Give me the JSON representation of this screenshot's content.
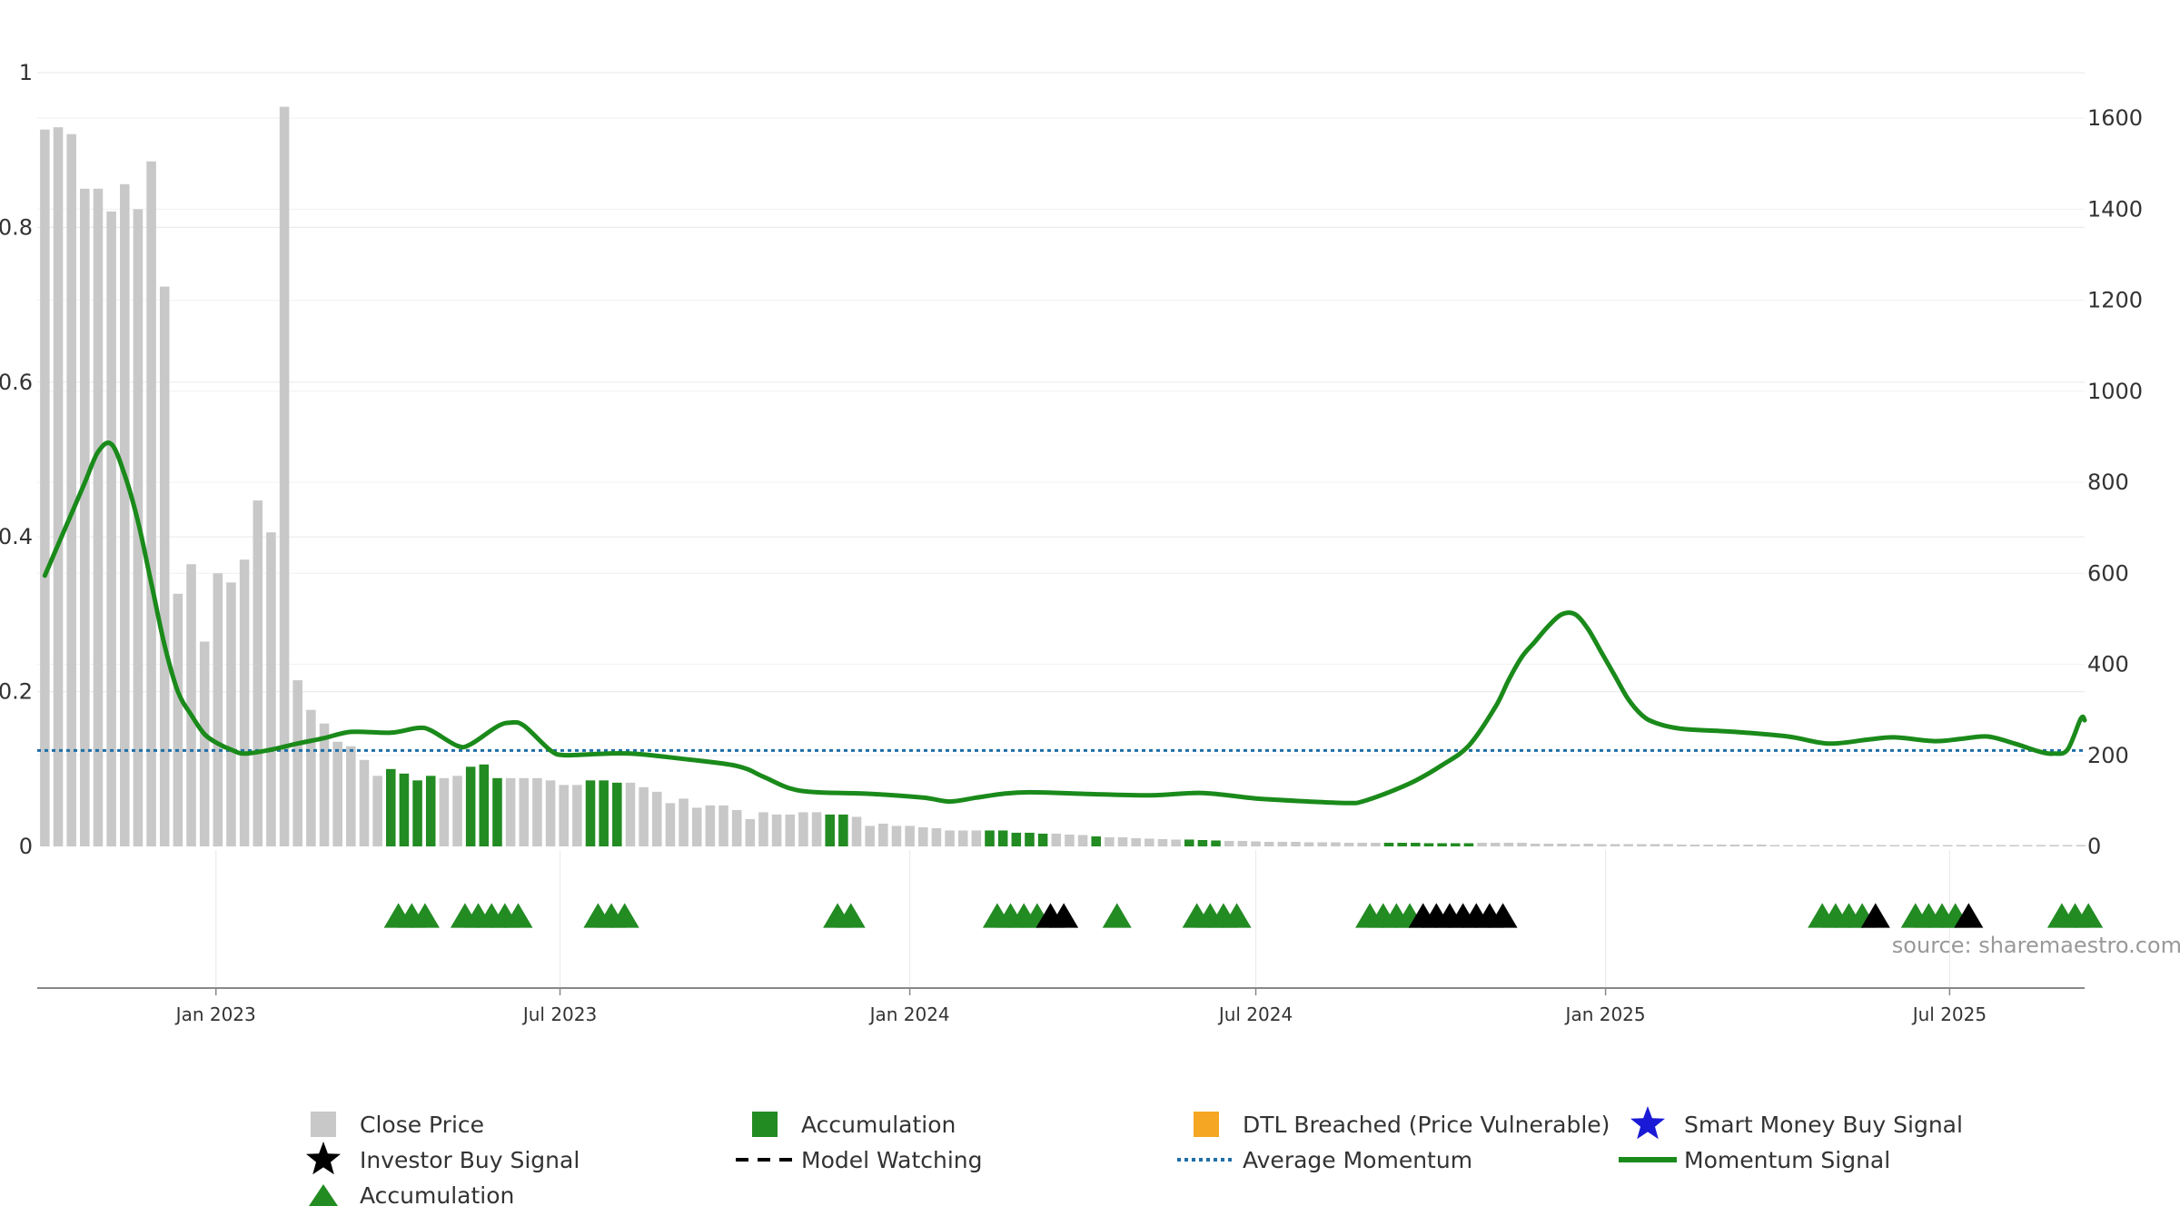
{
  "chart_data": {
    "type": "bar",
    "source_text": "source: sharemaestro.com",
    "left_axis": {
      "ticks": [
        0,
        0.2,
        0.4,
        0.6,
        0.8,
        1
      ],
      "labels": [
        "0",
        "0.2",
        "0.4",
        "0.6",
        "0.8",
        "1"
      ],
      "range": [
        0,
        1
      ]
    },
    "right_axis": {
      "ticks": [
        0,
        200,
        400,
        600,
        800,
        1000,
        1200,
        1400,
        1600
      ],
      "labels": [
        "0",
        "200",
        "400",
        "600",
        "800",
        "1000",
        "1200",
        "1400",
        "1600"
      ],
      "range": [
        0,
        1700
      ]
    },
    "x_axis": {
      "range": [
        "2022-09-29",
        "2025-09-10"
      ],
      "ticks": [
        {
          "date": "2023-01-01",
          "label": "Jan 2023"
        },
        {
          "date": "2023-07-01",
          "label": "Jul 2023"
        },
        {
          "date": "2024-01-01",
          "label": "Jan 2024"
        },
        {
          "date": "2024-07-01",
          "label": "Jul 2024"
        },
        {
          "date": "2025-01-01",
          "label": "Jan 2025"
        },
        {
          "date": "2025-07-01",
          "label": "Jul 2025"
        }
      ]
    },
    "colors": {
      "close_price": "#c8c8c8",
      "accumulation": "#228b22",
      "momentum": "#1a8a1a",
      "average_momentum": "#1f6fa8",
      "investor_buy": "#000000",
      "dtl_breached": "#f5a623",
      "smart_money": "#1a1ad6"
    },
    "price_bars": {
      "start": "2022-10-03",
      "interval_days": 7,
      "values": [
        1575,
        1580,
        1565,
        1445,
        1445,
        1395,
        1455,
        1400,
        1505,
        1230,
        555,
        620,
        450,
        600,
        580,
        630,
        760,
        690,
        1625,
        365,
        300,
        270,
        230,
        220,
        190,
        155,
        170,
        160,
        145,
        155,
        150,
        155,
        175,
        180,
        150,
        150,
        150,
        150,
        145,
        135,
        135,
        145,
        145,
        140,
        140,
        130,
        120,
        95,
        105,
        85,
        90,
        90,
        80,
        60,
        75,
        70,
        70,
        75,
        75,
        70,
        70,
        65,
        45,
        50,
        45,
        45,
        42,
        40,
        35,
        35,
        35,
        35,
        35,
        30,
        30,
        28,
        28,
        26,
        25,
        22,
        20,
        20,
        18,
        17,
        16,
        15,
        15,
        14,
        13,
        12,
        12,
        11,
        10,
        10,
        10,
        9,
        9,
        9,
        8,
        8,
        8,
        8,
        8,
        8,
        7,
        7,
        7,
        7,
        8,
        8,
        8,
        8,
        6,
        6,
        6,
        5,
        6,
        5,
        5,
        5,
        5,
        5,
        5,
        4,
        4,
        4,
        4,
        4,
        4,
        4,
        3,
        3,
        3,
        3,
        3,
        2,
        2,
        2,
        2,
        2,
        2,
        2,
        2,
        2,
        2,
        2,
        2,
        2,
        2,
        2,
        2,
        2,
        2,
        2,
        2,
        2,
        2,
        2,
        2,
        2
      ]
    },
    "accumulation_bars": [
      {
        "start": "2023-04-03",
        "end": "2023-04-24"
      },
      {
        "start": "2023-05-15",
        "end": "2023-05-29"
      },
      {
        "start": "2023-07-17",
        "end": "2023-07-31"
      },
      {
        "start": "2023-11-20",
        "end": "2023-11-27"
      },
      {
        "start": "2024-02-12",
        "end": "2024-03-11"
      },
      {
        "start": "2024-04-08",
        "end": "2024-04-08"
      },
      {
        "start": "2024-05-27",
        "end": "2024-06-10"
      },
      {
        "start": "2024-09-09",
        "end": "2024-10-21"
      }
    ],
    "momentum": [
      [
        "2022-10-03",
        0.35
      ],
      [
        "2022-10-10",
        0.39
      ],
      [
        "2022-10-17",
        0.43
      ],
      [
        "2022-10-24",
        0.47
      ],
      [
        "2022-10-31",
        0.51
      ],
      [
        "2022-11-07",
        0.52
      ],
      [
        "2022-11-14",
        0.48
      ],
      [
        "2022-11-21",
        0.42
      ],
      [
        "2022-11-28",
        0.34
      ],
      [
        "2022-12-05",
        0.26
      ],
      [
        "2022-12-12",
        0.2
      ],
      [
        "2022-12-19",
        0.17
      ],
      [
        "2022-12-26",
        0.145
      ],
      [
        "2023-01-02",
        0.133
      ],
      [
        "2023-01-09",
        0.125
      ],
      [
        "2023-01-16",
        0.12
      ],
      [
        "2023-01-30",
        0.125
      ],
      [
        "2023-02-13",
        0.133
      ],
      [
        "2023-02-27",
        0.14
      ],
      [
        "2023-03-13",
        0.148
      ],
      [
        "2023-04-03",
        0.147
      ],
      [
        "2023-04-17",
        0.153
      ],
      [
        "2023-04-24",
        0.15
      ],
      [
        "2023-05-08",
        0.13
      ],
      [
        "2023-05-15",
        0.132
      ],
      [
        "2023-05-29",
        0.155
      ],
      [
        "2023-06-05",
        0.16
      ],
      [
        "2023-06-12",
        0.156
      ],
      [
        "2023-06-26",
        0.124
      ],
      [
        "2023-07-03",
        0.118
      ],
      [
        "2023-07-17",
        0.119
      ],
      [
        "2023-08-07",
        0.12
      ],
      [
        "2023-09-04",
        0.113
      ],
      [
        "2023-10-02",
        0.104
      ],
      [
        "2023-10-16",
        0.09
      ],
      [
        "2023-10-30",
        0.075
      ],
      [
        "2023-11-13",
        0.07
      ],
      [
        "2023-12-11",
        0.068
      ],
      [
        "2024-01-08",
        0.063
      ],
      [
        "2024-01-22",
        0.058
      ],
      [
        "2024-02-05",
        0.063
      ],
      [
        "2024-02-19",
        0.068
      ],
      [
        "2024-03-04",
        0.07
      ],
      [
        "2024-04-01",
        0.068
      ],
      [
        "2024-05-06",
        0.066
      ],
      [
        "2024-06-03",
        0.069
      ],
      [
        "2024-07-01",
        0.062
      ],
      [
        "2024-07-29",
        0.058
      ],
      [
        "2024-08-19",
        0.056
      ],
      [
        "2024-08-26",
        0.058
      ],
      [
        "2024-09-09",
        0.07
      ],
      [
        "2024-09-23",
        0.085
      ],
      [
        "2024-10-07",
        0.105
      ],
      [
        "2024-10-21",
        0.13
      ],
      [
        "2024-11-04",
        0.18
      ],
      [
        "2024-11-11",
        0.215
      ],
      [
        "2024-11-18",
        0.245
      ],
      [
        "2024-11-25",
        0.265
      ],
      [
        "2024-12-02",
        0.285
      ],
      [
        "2024-12-09",
        0.3
      ],
      [
        "2024-12-16",
        0.3
      ],
      [
        "2024-12-23",
        0.28
      ],
      [
        "2024-12-30",
        0.25
      ],
      [
        "2025-01-06",
        0.22
      ],
      [
        "2025-01-13",
        0.19
      ],
      [
        "2025-01-20",
        0.17
      ],
      [
        "2025-01-27",
        0.16
      ],
      [
        "2025-02-10",
        0.152
      ],
      [
        "2025-03-10",
        0.148
      ],
      [
        "2025-04-07",
        0.142
      ],
      [
        "2025-04-28",
        0.133
      ],
      [
        "2025-05-19",
        0.138
      ],
      [
        "2025-06-02",
        0.141
      ],
      [
        "2025-06-23",
        0.136
      ],
      [
        "2025-07-07",
        0.139
      ],
      [
        "2025-07-21",
        0.142
      ],
      [
        "2025-08-04",
        0.133
      ],
      [
        "2025-08-18",
        0.122
      ],
      [
        "2025-08-25",
        0.12
      ],
      [
        "2025-09-01",
        0.125
      ],
      [
        "2025-09-08",
        0.165
      ],
      [
        "2025-09-10",
        0.163
      ]
    ],
    "average_momentum": 0.124,
    "accumulation_signals": [
      "2023-04-07",
      "2023-04-14",
      "2023-04-21",
      "2023-05-12",
      "2023-05-19",
      "2023-05-26",
      "2023-06-02",
      "2023-06-09",
      "2023-07-21",
      "2023-07-28",
      "2023-08-04",
      "2023-11-24",
      "2023-12-01",
      "2024-02-16",
      "2024-02-23",
      "2024-03-01",
      "2024-03-08",
      "2024-04-19",
      "2024-05-31",
      "2024-06-07",
      "2024-06-14",
      "2024-06-21",
      "2024-08-30",
      "2024-09-06",
      "2024-09-13",
      "2024-09-20",
      "2025-04-25",
      "2025-05-02",
      "2025-05-09",
      "2025-05-16",
      "2025-06-13",
      "2025-06-20",
      "2025-06-27",
      "2025-07-04",
      "2025-08-29",
      "2025-09-05",
      "2025-09-12"
    ],
    "investor_buy_signals": [
      "2024-03-15",
      "2024-03-22",
      "2024-09-27",
      "2024-10-04",
      "2024-10-11",
      "2024-10-18",
      "2024-10-25",
      "2024-11-01",
      "2024-11-08",
      "2025-05-23",
      "2025-07-11"
    ],
    "legend": [
      {
        "label": "Close Price",
        "marker": "square",
        "color_key": "close_price"
      },
      {
        "label": "Accumulation",
        "marker": "square",
        "color_key": "accumulation"
      },
      {
        "label": "DTL Breached (Price Vulnerable)",
        "marker": "square",
        "color_key": "dtl_breached"
      },
      {
        "label": "Smart Money Buy Signal",
        "marker": "star",
        "color_key": "smart_money"
      },
      {
        "label": "Investor Buy Signal",
        "marker": "star",
        "color_key": "investor_buy"
      },
      {
        "label": "Model Watching",
        "marker": "dash",
        "color_key": "investor_buy"
      },
      {
        "label": "Average Momentum",
        "marker": "dotted",
        "color_key": "average_momentum"
      },
      {
        "label": "Momentum Signal",
        "marker": "line",
        "color_key": "momentum"
      },
      {
        "label": "Accumulation",
        "marker": "triangle",
        "color_key": "accumulation"
      }
    ]
  }
}
